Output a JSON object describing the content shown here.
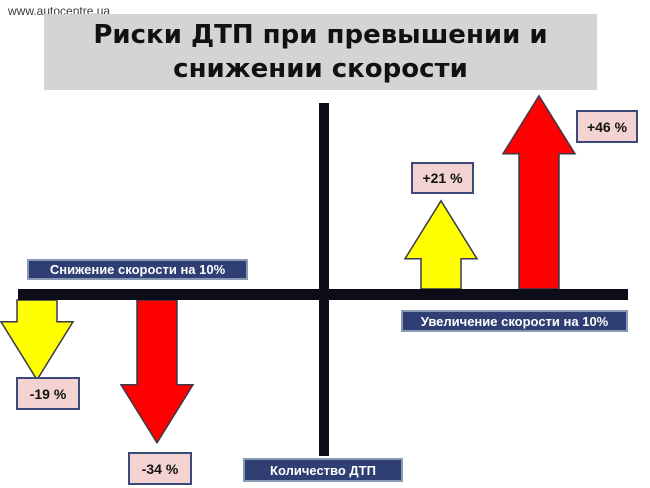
{
  "watermark": "www.autocentre.ua",
  "title": "Риски ДТП при превышении и\nснижении скорости",
  "colors": {
    "background": "#ffffff",
    "title_bg": "#d4d4d4",
    "axis": "#0d0d1a",
    "label_bg": "#2f3f73",
    "value_bg": "#f2d3d1",
    "yellow": "#ffff00",
    "red": "#ff0000",
    "arrow_outline": "#3a3a4a"
  },
  "chart_data": {
    "type": "bar",
    "title": "Риски ДТП при превышении и\nснижении скорости",
    "xlabel_left": "Снижение скорости на 10%",
    "xlabel_right": "Увеличение скорости на 10%",
    "ylabel": "Количество ДТП",
    "series": [
      {
        "side": "decrease",
        "value": -19,
        "label": "-19 %",
        "color": "yellow"
      },
      {
        "side": "decrease",
        "value": -34,
        "label": "-34 %",
        "color": "red"
      },
      {
        "side": "increase",
        "value": 21,
        "label": "+21 %",
        "color": "yellow"
      },
      {
        "side": "increase",
        "value": 46,
        "label": "+46 %",
        "color": "red"
      }
    ]
  }
}
